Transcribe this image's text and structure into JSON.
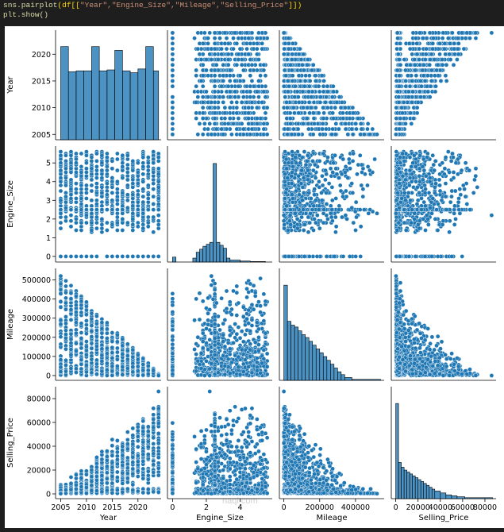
{
  "code": {
    "line1_fn": "sns.pairplot",
    "line1_arg_open": "(df[[",
    "line1_cols": "\"Year\",\"Engine_Size\",\"Mileage\",\"Selling_Price\"",
    "line1_close": "]])",
    "line2": "plt.show()"
  },
  "watermark": "naql.com",
  "colors": {
    "marker": "#1f77b4",
    "edge": "#ffffff",
    "background": "#1f1f1f"
  },
  "chart_data": {
    "type": "pairplot",
    "variables": [
      "Year",
      "Engine_Size",
      "Mileage",
      "Selling_Price"
    ],
    "ranges": {
      "Year": [
        2004,
        2024.5
      ],
      "Engine_Size": [
        -0.3,
        5.9
      ],
      "Mileage": [
        -25000,
        560000
      ],
      "Selling_Price": [
        -4000,
        90000
      ]
    },
    "ticks": {
      "Year": {
        "values": [
          2005,
          2010,
          2015,
          2020
        ],
        "labels": [
          "2005",
          "2010",
          "2015",
          "2020"
        ]
      },
      "Engine_Size": {
        "values": [
          0,
          1,
          2,
          3,
          4,
          5
        ],
        "labels": [
          "0",
          "1",
          "2",
          "3",
          "4",
          "5"
        ],
        "x_values": [
          0,
          2,
          4
        ],
        "x_labels": [
          "0",
          "2",
          "4"
        ]
      },
      "Mileage": {
        "values": [
          0,
          100000,
          200000,
          300000,
          400000,
          500000
        ],
        "labels": [
          "0",
          "100000",
          "200000",
          "300000",
          "400000",
          "500000"
        ],
        "x_values": [
          0,
          200000,
          400000
        ],
        "x_labels": [
          "0",
          "200000",
          "400000"
        ]
      },
      "Selling_Price": {
        "values": [
          0,
          20000,
          40000,
          60000,
          80000
        ],
        "labels": [
          "0",
          "20000",
          "40000",
          "60000",
          "80000"
        ]
      }
    },
    "histograms": {
      "Year": {
        "bins": [
          2005,
          2006.5,
          2008,
          2009.5,
          2011,
          2012.5,
          2014,
          2015.5,
          2017,
          2018.5,
          2020,
          2021.5,
          2023,
          2024
        ],
        "counts": [
          1.0,
          0.73,
          0.74,
          0.74,
          1.0,
          0.74,
          0.75,
          0.96,
          0.74,
          0.72,
          0.76,
          1.0,
          0.74
        ]
      },
      "Engine_Size": {
        "bins": [
          0,
          0.2,
          1.2,
          1.4,
          1.6,
          1.8,
          2.0,
          2.2,
          2.4,
          2.6,
          2.8,
          3.0,
          3.2,
          3.4,
          4.0,
          4.6,
          5.5
        ],
        "counts": [
          0.05,
          0.0,
          0.04,
          0.1,
          0.13,
          0.16,
          0.18,
          0.2,
          1.0,
          0.2,
          0.17,
          0.14,
          0.04,
          0.02,
          0.01,
          0.005
        ]
      },
      "Mileage": {
        "bins": [
          0,
          20000,
          40000,
          60000,
          80000,
          100000,
          120000,
          140000,
          160000,
          180000,
          200000,
          220000,
          240000,
          260000,
          280000,
          300000,
          320000,
          340000,
          380000,
          540000
        ],
        "counts": [
          1.0,
          0.62,
          0.58,
          0.56,
          0.52,
          0.48,
          0.45,
          0.41,
          0.37,
          0.33,
          0.29,
          0.25,
          0.21,
          0.17,
          0.13,
          0.09,
          0.06,
          0.03,
          0.01
        ]
      },
      "Selling_Price": {
        "bins": [
          0,
          2500,
          5000,
          7500,
          10000,
          12500,
          15000,
          17500,
          20000,
          22500,
          25000,
          27500,
          30000,
          32500,
          35000,
          40000,
          45000,
          50000,
          55000,
          62000,
          87000
        ],
        "counts": [
          1.0,
          0.38,
          0.33,
          0.3,
          0.28,
          0.26,
          0.24,
          0.22,
          0.2,
          0.18,
          0.16,
          0.14,
          0.12,
          0.1,
          0.08,
          0.06,
          0.04,
          0.03,
          0.02,
          0.01
        ]
      }
    },
    "relationships": {
      "Year_vs_Mileage": "max mileage declines from about 520000 in 2005 to about 10000 in 2024",
      "Year_vs_Selling_Price": "price rises with year, up to about 86000 in 2024",
      "Engine_Size_levels": "cars cluster between 1.3 and 5.6 litres, plus a group at 0"
    }
  }
}
